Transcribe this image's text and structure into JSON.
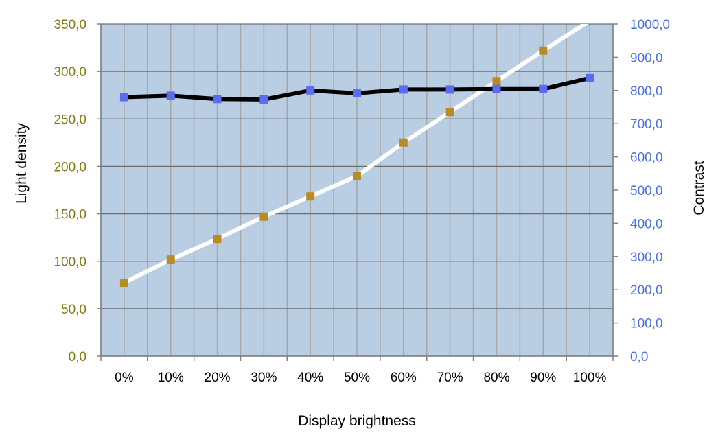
{
  "chart_data": {
    "type": "line",
    "title": "",
    "xlabel": "Display brightness",
    "ylabel": "Light density",
    "y2label": "Contrast",
    "categories": [
      "0%",
      "10%",
      "20%",
      "30%",
      "40%",
      "50%",
      "60%",
      "70%",
      "80%",
      "90%",
      "100%"
    ],
    "ylim": [
      0,
      350
    ],
    "y2lim": [
      0,
      1000
    ],
    "y_ticks": [
      "0,0",
      "50,0",
      "100,0",
      "150,0",
      "200,0",
      "250,0",
      "300,0",
      "350,0"
    ],
    "y2_ticks": [
      "0,0",
      "100,0",
      "200,0",
      "300,0",
      "400,0",
      "500,0",
      "600,0",
      "700,0",
      "800,0",
      "900,0",
      "1000,0"
    ],
    "grid": true,
    "legend": "none",
    "series": [
      {
        "axis": "left",
        "line_color": "#000000",
        "marker_color": "#5b6cf0",
        "values": [
          273,
          274.5,
          271,
          270.5,
          280,
          277,
          281,
          281,
          281.5,
          281.5,
          293
        ]
      },
      {
        "axis": "right",
        "line_color": "#ffffff",
        "marker_color": "#b98b25",
        "values": [
          221,
          291,
          353,
          420,
          481,
          542,
          643,
          735,
          828,
          920,
          1010
        ]
      }
    ],
    "colors": {
      "plot_background": "#b9cde3",
      "grid": "#a6a6a6",
      "left_axis_text": "#807d10",
      "right_axis_text": "#4a6ee8"
    }
  }
}
